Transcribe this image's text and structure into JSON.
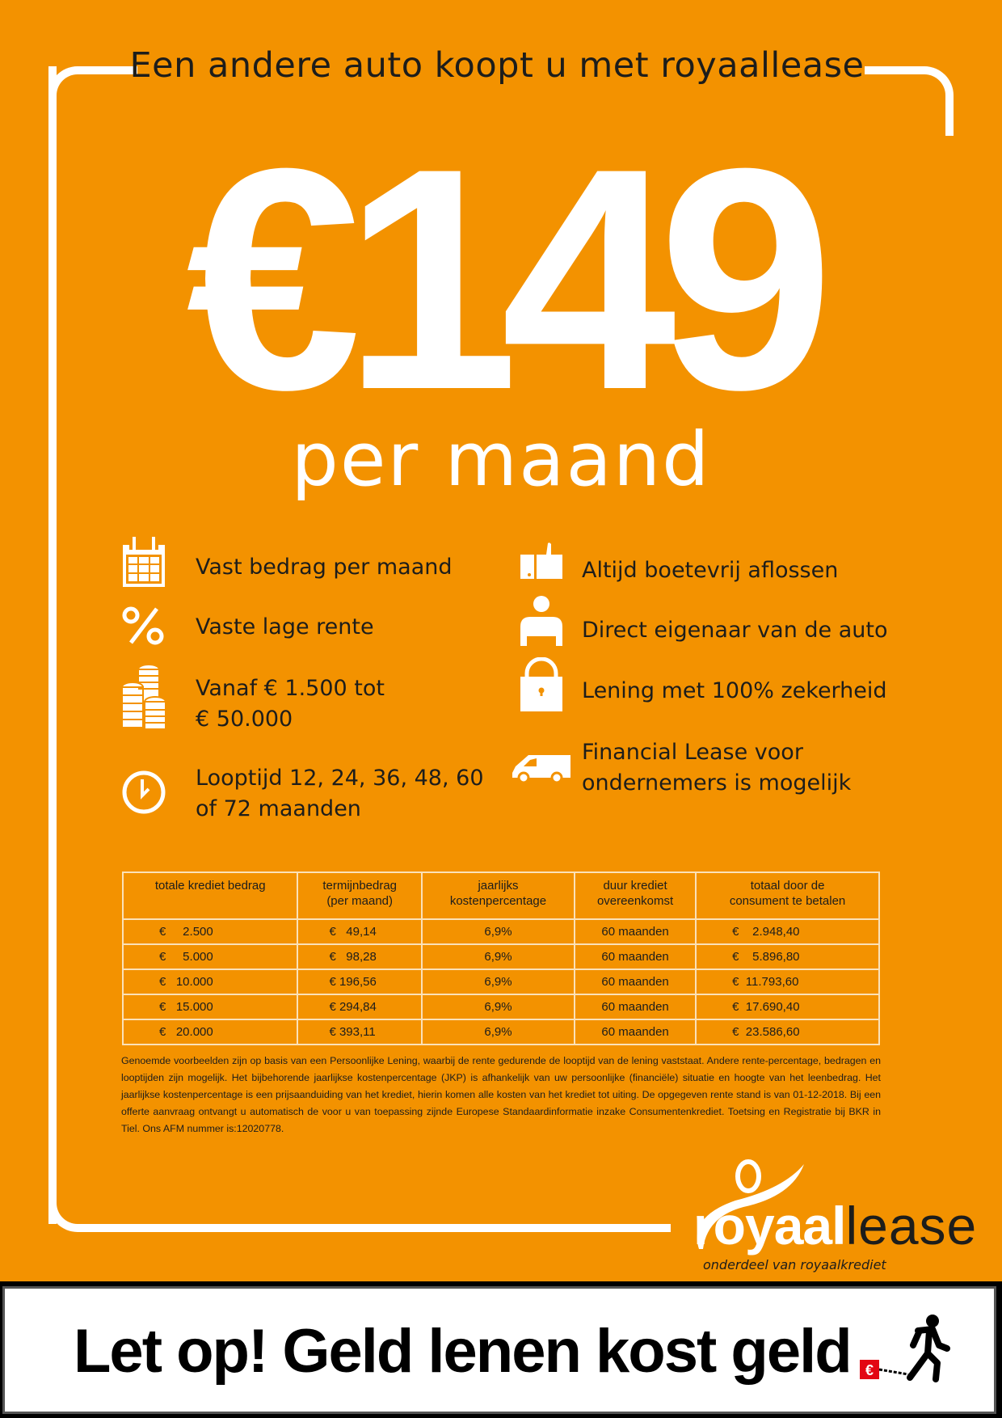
{
  "header": {
    "title": "Een andere auto koopt u met royaallease"
  },
  "hero": {
    "price": "€149",
    "period": "per maand"
  },
  "features_left": [
    {
      "icon": "calendar-icon",
      "text": "Vast bedrag per maand"
    },
    {
      "icon": "percent-icon",
      "text": "Vaste lage rente"
    },
    {
      "icon": "coins-icon",
      "line1": "Vanaf € 1.500 tot",
      "line2": "€ 50.000"
    },
    {
      "icon": "clock-icon",
      "line1": "Looptijd 12, 24, 36, 48, 60",
      "line2": "of 72 maanden"
    }
  ],
  "features_right": [
    {
      "icon": "thumbs-up-icon",
      "text": "Altijd boetevrij aflossen"
    },
    {
      "icon": "person-icon",
      "text": "Direct eigenaar van de auto"
    },
    {
      "icon": "lock-icon",
      "text": "Lening met 100% zekerheid"
    },
    {
      "icon": "van-icon",
      "line1": "Financial Lease voor",
      "line2": "ondernemers is mogelijk"
    }
  ],
  "table": {
    "headers": [
      [
        "totale krediet bedrag",
        ""
      ],
      [
        "termijnbedrag",
        "(per maand)"
      ],
      [
        "jaarlijks",
        "kostenpercentage"
      ],
      [
        "duur krediet",
        "overeenkomst"
      ],
      [
        "totaal door de",
        "consument te betalen"
      ]
    ],
    "rows": [
      [
        "€     2.500",
        "€   49,14",
        "6,9%",
        "60 maanden",
        "€    2.948,40"
      ],
      [
        "€     5.000",
        "€   98,28",
        "6,9%",
        "60 maanden",
        "€    5.896,80"
      ],
      [
        "€   10.000",
        "€ 196,56",
        "6,9%",
        "60 maanden",
        "€  11.793,60"
      ],
      [
        "€   15.000",
        "€ 294,84",
        "6,9%",
        "60 maanden",
        "€  17.690,40"
      ],
      [
        "€   20.000",
        "€ 393,11",
        "6,9%",
        "60 maanden",
        "€  23.586,60"
      ]
    ]
  },
  "fine_print": "Genoemde voorbeelden zijn op basis van een Persoonlijke Lening, waarbij de rente gedurende de looptijd van de lening vaststaat. Andere rente-percentage, bedragen en looptijden zijn mogelijk. Het bijbehorende jaarlijkse kostenpercentage (JKP) is afhankelijk van uw persoonlijke (financiële) situatie en hoogte van het leenbedrag. Het jaarlijkse kostenpercentage is een prijsaanduiding van het krediet, hierin komen alle kosten van het krediet tot uiting. De opgegeven rente stand is van 01-12-2018.  Bij een offerte aanvraag ontvangt u automatisch de voor u van toepassing zijnde Europese Standaardinformatie inzake Consumentenkrediet. Toetsing en Registratie bij BKR in Tiel. Ons AFM nummer is:12020778.",
  "logo": {
    "bold": "royaal",
    "thin": "lease",
    "tagline": "onderdeel van royaalkrediet"
  },
  "footer": {
    "warning": "Let op! Geld lenen kost geld",
    "icon": "walking-man-chained-euro-icon",
    "euro": "€"
  },
  "colors": {
    "orange": "#F39200",
    "text": "#1d1d1b",
    "white": "#ffffff",
    "euro_red": "#e30613"
  }
}
